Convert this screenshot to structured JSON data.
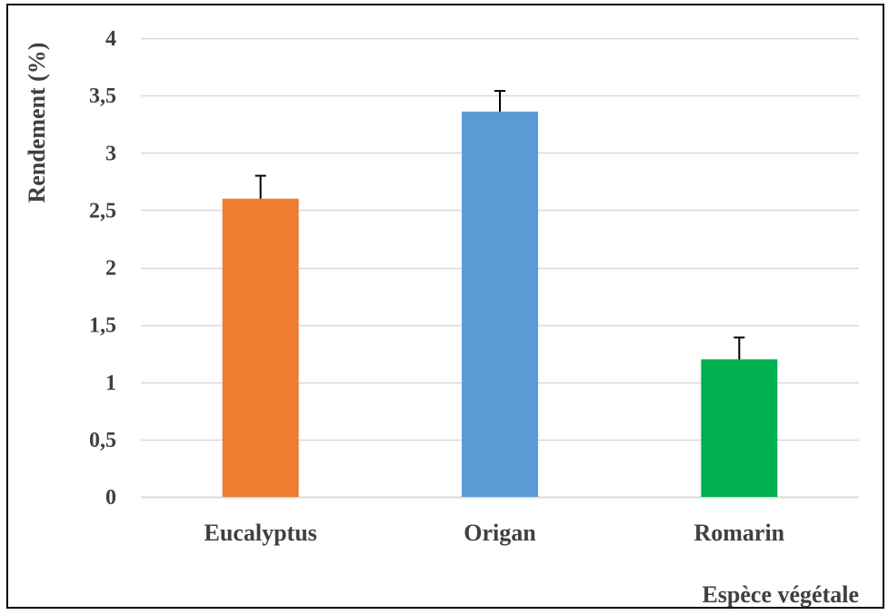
{
  "chart_data": {
    "type": "bar",
    "categories": [
      "Eucalyptus",
      "Origan",
      "Romarin"
    ],
    "values": [
      2.6,
      3.36,
      1.2
    ],
    "error_bars": [
      0.2,
      0.18,
      0.19
    ],
    "colors": [
      "#ED7D31",
      "#5B9BD5",
      "#00B050"
    ],
    "xlabel": "Espèce végétale",
    "ylabel": "Rendement (%)",
    "ylim": [
      0,
      4
    ],
    "y_ticks": [
      0,
      0.5,
      1,
      1.5,
      2,
      2.5,
      3,
      3.5,
      4
    ],
    "y_tick_labels": [
      "0",
      "0,5",
      "1",
      "1,5",
      "2",
      "2,5",
      "3",
      "3,5",
      "4"
    ],
    "grid": true,
    "gridline_color": "#D9D9D9",
    "baseline_color": "#D9D9D9",
    "text_color": "#404040"
  }
}
